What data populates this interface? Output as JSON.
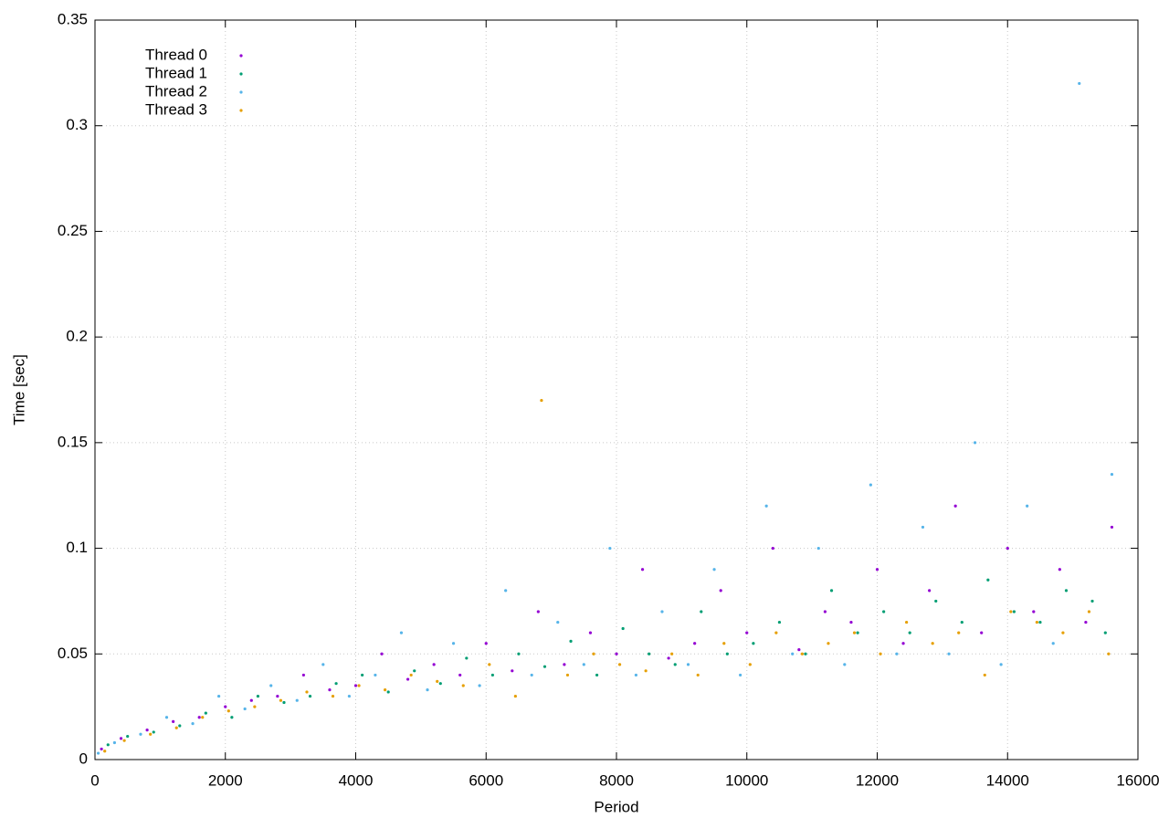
{
  "chart_data": {
    "type": "scatter",
    "x_label": "Period",
    "y_label": "Time [sec]",
    "xlim": [
      0,
      16000
    ],
    "xticks": [
      0,
      2000,
      4000,
      6000,
      8000,
      10000,
      12000,
      14000,
      16000
    ],
    "ylim": [
      0,
      0.35
    ],
    "yticks": [
      0,
      0.05,
      0.1,
      0.15,
      0.2,
      0.25,
      0.3,
      0.35
    ],
    "grid": true,
    "legend": "top-left",
    "series": [
      {
        "name": "Thread 0",
        "color": "#9400d3",
        "x": [
          100,
          400,
          800,
          1200,
          1600,
          2000,
          2400,
          2800,
          3200,
          3600,
          4000,
          4400,
          4800,
          5200,
          5600,
          6000,
          6400,
          6800,
          7200,
          7600,
          8000,
          8400,
          8800,
          9200,
          9600,
          10000,
          10400,
          10800,
          11200,
          11600,
          12000,
          12400,
          12800,
          13200,
          13600,
          14000,
          14400,
          14800,
          15200,
          15600
        ],
        "values": [
          0.005,
          0.01,
          0.014,
          0.018,
          0.02,
          0.025,
          0.028,
          0.03,
          0.04,
          0.033,
          0.035,
          0.05,
          0.038,
          0.045,
          0.04,
          0.055,
          0.042,
          0.07,
          0.045,
          0.06,
          0.05,
          0.09,
          0.048,
          0.055,
          0.08,
          0.06,
          0.1,
          0.052,
          0.07,
          0.065,
          0.09,
          0.055,
          0.08,
          0.12,
          0.06,
          0.1,
          0.07,
          0.09,
          0.065,
          0.11
        ]
      },
      {
        "name": "Thread 1",
        "color": "#009e73",
        "x": [
          200,
          500,
          900,
          1300,
          1700,
          2100,
          2500,
          2900,
          3300,
          3700,
          4100,
          4500,
          4900,
          5300,
          5700,
          6100,
          6500,
          6900,
          7300,
          7700,
          8100,
          8500,
          8900,
          9300,
          9700,
          10100,
          10500,
          10900,
          11300,
          11700,
          12100,
          12500,
          12900,
          13300,
          13700,
          14100,
          14500,
          14900,
          15300,
          15500
        ],
        "values": [
          0.007,
          0.011,
          0.013,
          0.016,
          0.022,
          0.02,
          0.03,
          0.027,
          0.03,
          0.036,
          0.04,
          0.032,
          0.042,
          0.036,
          0.048,
          0.04,
          0.05,
          0.044,
          0.056,
          0.04,
          0.062,
          0.05,
          0.045,
          0.07,
          0.05,
          0.055,
          0.065,
          0.05,
          0.08,
          0.06,
          0.07,
          0.06,
          0.075,
          0.065,
          0.085,
          0.07,
          0.065,
          0.08,
          0.075,
          0.06
        ]
      },
      {
        "name": "Thread 2",
        "color": "#56b4e9",
        "x": [
          50,
          300,
          700,
          1100,
          1500,
          1900,
          2300,
          2700,
          3100,
          3500,
          3900,
          4300,
          4700,
          5100,
          5500,
          5900,
          6300,
          6700,
          7100,
          7500,
          7900,
          8300,
          8700,
          9100,
          9500,
          9900,
          10300,
          10700,
          11100,
          11500,
          11900,
          12300,
          12700,
          13100,
          13500,
          13900,
          14300,
          14700,
          15100,
          15600
        ],
        "values": [
          0.003,
          0.008,
          0.012,
          0.02,
          0.017,
          0.03,
          0.024,
          0.035,
          0.028,
          0.045,
          0.03,
          0.04,
          0.06,
          0.033,
          0.055,
          0.035,
          0.08,
          0.04,
          0.065,
          0.045,
          0.1,
          0.04,
          0.07,
          0.045,
          0.09,
          0.04,
          0.12,
          0.05,
          0.1,
          0.045,
          0.13,
          0.05,
          0.11,
          0.05,
          0.15,
          0.045,
          0.12,
          0.055,
          0.32,
          0.135
        ]
      },
      {
        "name": "Thread 3",
        "color": "#e69f00",
        "x": [
          150,
          450,
          850,
          1250,
          1650,
          2050,
          2450,
          2850,
          3250,
          3650,
          4050,
          4450,
          4850,
          5250,
          5650,
          6050,
          6450,
          6850,
          7250,
          7650,
          8050,
          8450,
          8850,
          9250,
          9650,
          10050,
          10450,
          10850,
          11250,
          11650,
          12050,
          12450,
          12850,
          13250,
          13650,
          14050,
          14450,
          14850,
          15250,
          15550
        ],
        "values": [
          0.004,
          0.009,
          0.012,
          0.015,
          0.02,
          0.023,
          0.025,
          0.028,
          0.032,
          0.03,
          0.035,
          0.033,
          0.04,
          0.037,
          0.035,
          0.045,
          0.03,
          0.17,
          0.04,
          0.05,
          0.045,
          0.042,
          0.05,
          0.04,
          0.055,
          0.045,
          0.06,
          0.05,
          0.055,
          0.06,
          0.05,
          0.065,
          0.055,
          0.06,
          0.04,
          0.07,
          0.065,
          0.06,
          0.07,
          0.05
        ]
      }
    ]
  }
}
